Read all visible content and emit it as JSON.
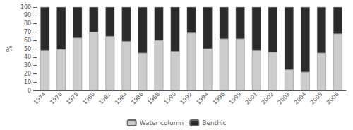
{
  "chart_data": {
    "type": "bar",
    "stacked": true,
    "categories": [
      "1974",
      "1976",
      "1978",
      "1980",
      "1982",
      "1984",
      "1986",
      "1988",
      "1990",
      "1992",
      "1994",
      "1996",
      "1999",
      "2001",
      "2002",
      "2003",
      "2004",
      "2005",
      "2006"
    ],
    "series": [
      {
        "name": "Water column",
        "color": "#cccccc",
        "values": [
          48,
          49,
          63,
          70,
          65,
          59,
          45,
          60,
          47,
          69,
          50,
          62,
          62,
          48,
          46,
          25,
          22,
          45,
          68
        ]
      },
      {
        "name": "Benthic",
        "color": "#2a2a2a",
        "values": [
          52,
          51,
          37,
          30,
          35,
          41,
          55,
          40,
          53,
          31,
          50,
          38,
          38,
          52,
          54,
          75,
          78,
          55,
          32
        ]
      }
    ],
    "ylabel": "%",
    "ylim": [
      0,
      100
    ],
    "yticks": [
      0,
      10,
      20,
      30,
      40,
      50,
      60,
      70,
      80,
      90,
      100
    ],
    "grid": false,
    "legend": "bottom"
  }
}
